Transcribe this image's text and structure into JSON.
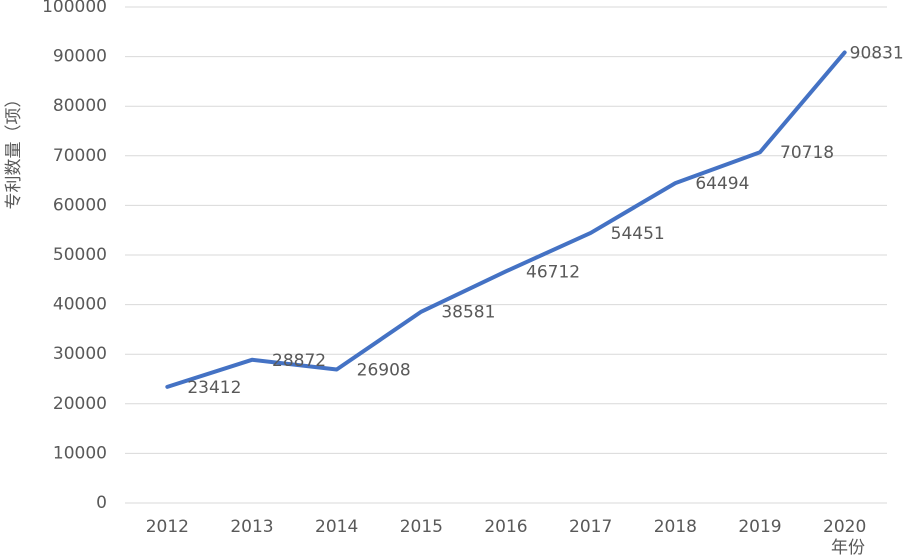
{
  "chart_data": {
    "type": "line",
    "y_label": "专利数量（项）",
    "x_label": "年份",
    "categories": [
      "2012",
      "2013",
      "2014",
      "2015",
      "2016",
      "2017",
      "2018",
      "2019",
      "2020"
    ],
    "values": [
      23412,
      28872,
      26908,
      38581,
      46712,
      54451,
      64494,
      70718,
      90831
    ],
    "color": "#4472c4",
    "ylim": [
      0,
      100000
    ],
    "yticks": [
      0,
      10000,
      20000,
      30000,
      40000,
      50000,
      60000,
      70000,
      80000,
      90000,
      100000
    ],
    "grid": true
  }
}
